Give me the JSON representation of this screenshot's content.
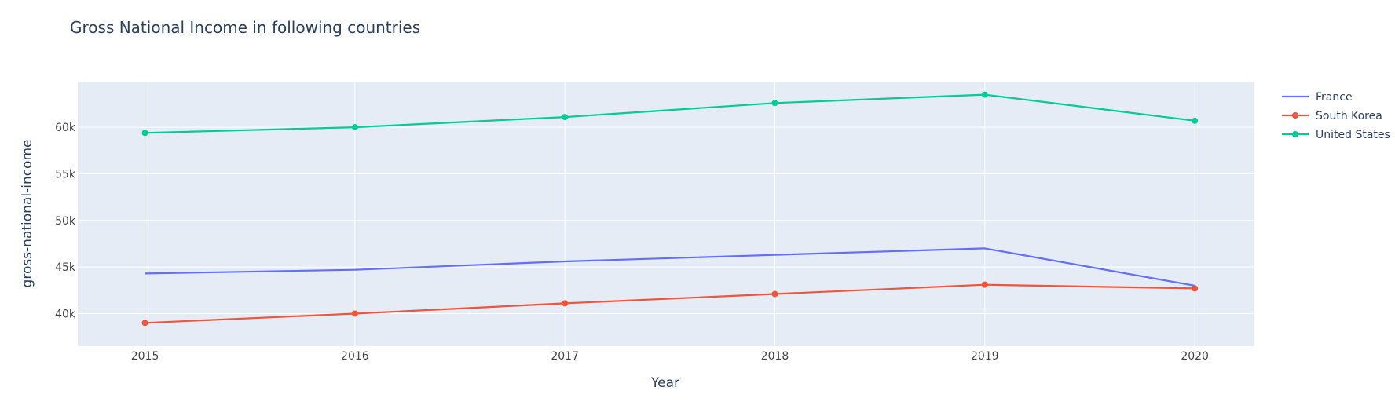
{
  "chart_data": {
    "type": "line",
    "title": "Gross National Income in following countries",
    "xlabel": "Year",
    "ylabel": "gross-national-income",
    "x": [
      2015,
      2016,
      2017,
      2018,
      2019,
      2020
    ],
    "xlim": [
      2014.68,
      2020.28
    ],
    "ylim": [
      36500,
      64900
    ],
    "y_ticks": [
      40000,
      45000,
      50000,
      55000,
      60000
    ],
    "y_tick_labels": [
      "40k",
      "45k",
      "50k",
      "55k",
      "60k"
    ],
    "x_tick_labels": [
      "2015",
      "2016",
      "2017",
      "2018",
      "2019",
      "2020"
    ],
    "grid": true,
    "legend_position": "top-right",
    "series": [
      {
        "name": "France",
        "mode": "lines",
        "color": "#636efa",
        "values": [
          44300,
          44700,
          45600,
          46300,
          47000,
          43000
        ]
      },
      {
        "name": "South Korea",
        "mode": "lines+markers",
        "color": "#ef553b",
        "values": [
          39000,
          40000,
          41100,
          42100,
          43100,
          42700
        ]
      },
      {
        "name": "United States",
        "mode": "lines+markers",
        "color": "#00cc96",
        "values": [
          59400,
          60000,
          61100,
          62600,
          63500,
          60700
        ]
      }
    ]
  },
  "colors": {
    "plot_background": "#e5ecf6",
    "grid": "#ffffff",
    "text": "#2a3f5f",
    "tick_text": "#444444"
  }
}
